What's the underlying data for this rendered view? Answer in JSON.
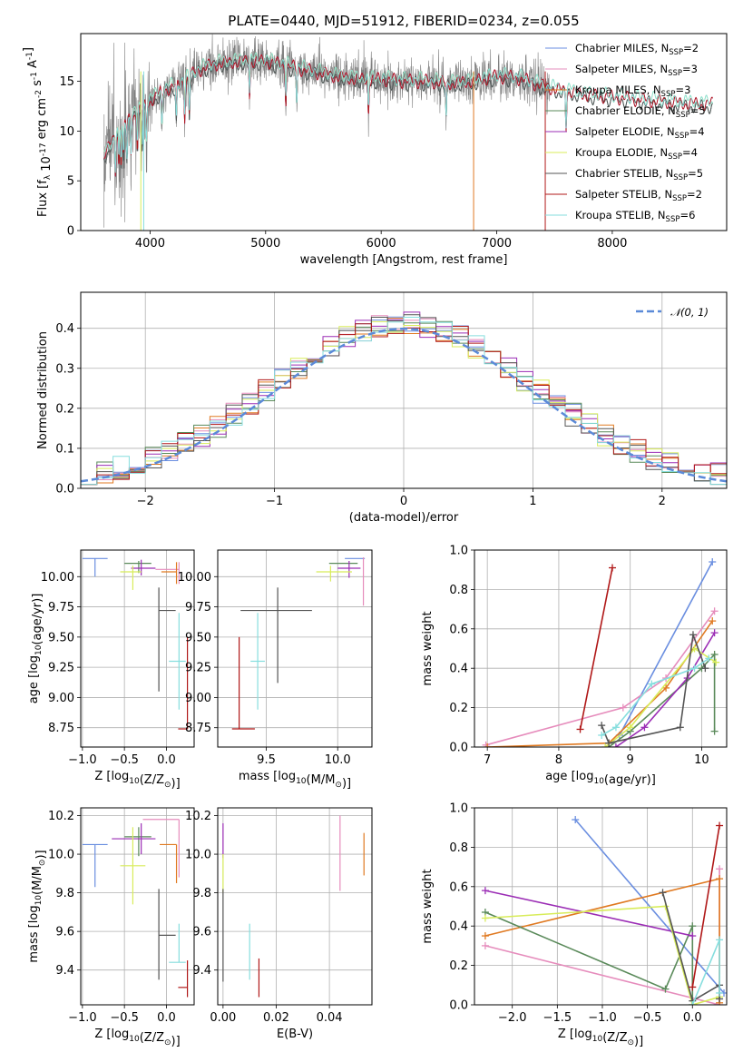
{
  "figure": {
    "title": "PLATE=0440, MJD=51912, FIBERID=0234, z=0.055",
    "colors": {
      "Chabrier MILES": "#6a8ee0",
      "Salpeter MILES": "#e68cbc",
      "Kroupa MILES": "#e07a22",
      "Chabrier ELODIE": "#5a8a5a",
      "Salpeter ELODIE": "#9b2db5",
      "Kroupa ELODIE": "#d8ec5a",
      "Chabrier STELIB": "#555555",
      "Salpeter STELIB": "#b01818",
      "Kroupa STELIB": "#86dede"
    },
    "data_color": "#7f7f7f",
    "gaussian_color": "#5b8ad8"
  },
  "chart_data": [
    {
      "id": "spectrum",
      "type": "line",
      "xlabel": "wavelength [Angstrom, rest frame]",
      "ylabel": "Flux [f_λ 10^-17 erg cm^-2 s^-1 A^-1]",
      "xlim": [
        3400,
        8990
      ],
      "ylim": [
        0,
        19.8
      ],
      "xticks": [
        "4000",
        "5000",
        "6000",
        "7000",
        "8000"
      ],
      "yticks": [
        "0",
        "5",
        "10",
        "15"
      ],
      "legend_position": "upper right",
      "legend": [
        {
          "label": "Chabrier MILES, N",
          "sub": "SSP",
          "n": "=2"
        },
        {
          "label": "Salpeter MILES, N",
          "sub": "SSP",
          "n": "=3"
        },
        {
          "label": "Kroupa MILES, N",
          "sub": "SSP",
          "n": "=3"
        },
        {
          "label": "Chabrier ELODIE, N",
          "sub": "SSP",
          "n": "=5"
        },
        {
          "label": "Salpeter ELODIE, N",
          "sub": "SSP",
          "n": "=4"
        },
        {
          "label": "Kroupa ELODIE, N",
          "sub": "SSP",
          "n": "=4"
        },
        {
          "label": "Chabrier STELIB, N",
          "sub": "SSP",
          "n": "=5"
        },
        {
          "label": "Salpeter STELIB, N",
          "sub": "SSP",
          "n": "=2"
        },
        {
          "label": "Kroupa STELIB, N",
          "sub": "SSP",
          "n": "=6"
        }
      ],
      "continuum": {
        "x": [
          3600,
          3700,
          3800,
          3900,
          4000,
          4100,
          4200,
          4300,
          4400,
          4500,
          4600,
          4800,
          5000,
          5200,
          5400,
          5600,
          5800,
          6000,
          6200,
          6400,
          6600,
          6800,
          7000,
          7200,
          7400,
          7600,
          7800,
          8000,
          8200,
          8400,
          8600,
          8800
        ],
        "y": [
          7.5,
          9.5,
          11.0,
          12.0,
          13.0,
          14.0,
          14.5,
          15.0,
          16.0,
          16.5,
          16.8,
          17.0,
          17.0,
          16.5,
          16.0,
          15.5,
          15.2,
          15.2,
          15.0,
          15.0,
          14.8,
          15.0,
          15.5,
          15.3,
          14.5,
          14.0,
          13.6,
          13.4,
          13.2,
          13.0,
          12.8,
          12.7
        ]
      },
      "data_wavelength_range": [
        3600,
        7460
      ],
      "model_wavelength_range": [
        3600,
        8870
      ],
      "masked_dips": [
        3920,
        3945,
        6800,
        7420
      ]
    },
    {
      "id": "residuals",
      "type": "histogram",
      "xlabel": "(data-model)/error",
      "ylabel": "Normed distribution",
      "xlim": [
        -2.5,
        2.5
      ],
      "ylim": [
        0,
        0.49
      ],
      "xticks": [
        "-2",
        "-1",
        "0",
        "1",
        "2"
      ],
      "yticks": [
        "0.0",
        "0.1",
        "0.2",
        "0.3",
        "0.4"
      ],
      "legend_label": "𝒩(0, 1)",
      "bin_width": 0.125,
      "reference": {
        "name": "N(0,1)",
        "mu": 0,
        "sigma": 1
      }
    },
    {
      "id": "age_vs_Z",
      "type": "errorbar",
      "xlabel": "Z [log10(Z/Z⊙)]",
      "ylabel": "age  [log10(age/yr)]",
      "xlim": [
        -1.02,
        0.33
      ],
      "ylim": [
        8.59,
        10.22
      ],
      "xticks": [
        "-1.0",
        "-0.5",
        "0.0"
      ],
      "yticks": [
        "8.75",
        "9.00",
        "9.25",
        "9.50",
        "9.75",
        "10.00"
      ],
      "points": [
        {
          "model": "Chabrier MILES",
          "x": -0.85,
          "y": 10.15,
          "xerr": [
            0.15,
            0.15
          ],
          "yerr": [
            0.15,
            0.0
          ]
        },
        {
          "model": "Salpeter MILES",
          "x": 0.15,
          "y": 10.06,
          "xerr": [
            0.28,
            0.0
          ],
          "yerr": [
            0.12,
            0.06
          ]
        },
        {
          "model": "Kroupa MILES",
          "x": 0.12,
          "y": 10.04,
          "xerr": [
            0.18,
            0.0
          ],
          "yerr": [
            0.1,
            0.08
          ]
        },
        {
          "model": "Chabrier ELODIE",
          "x": -0.33,
          "y": 10.11,
          "xerr": [
            0.17,
            0.15
          ],
          "yerr": [
            0.08,
            0.02
          ]
        },
        {
          "model": "Salpeter ELODIE",
          "x": -0.3,
          "y": 10.07,
          "xerr": [
            0.12,
            0.17
          ],
          "yerr": [
            0.06,
            0.07
          ]
        },
        {
          "model": "Kroupa ELODIE",
          "x": -0.4,
          "y": 10.04,
          "xerr": [
            0.15,
            0.1
          ],
          "yerr": [
            0.15,
            0.05
          ]
        },
        {
          "model": "Chabrier STELIB",
          "x": -0.09,
          "y": 9.72,
          "xerr": [
            0.0,
            0.2
          ],
          "yerr": [
            0.67,
            0.19
          ]
        },
        {
          "model": "Salpeter STELIB",
          "x": 0.25,
          "y": 8.74,
          "xerr": [
            0.11,
            0.0
          ],
          "yerr": [
            0.0,
            0.76
          ]
        },
        {
          "model": "Kroupa STELIB",
          "x": 0.15,
          "y": 9.3,
          "xerr": [
            0.12,
            0.08
          ],
          "yerr": [
            0.4,
            0.4
          ]
        }
      ]
    },
    {
      "id": "age_vs_mass",
      "type": "errorbar",
      "xlabel": "mass [log10(M/M⊙)]",
      "ylabel": "",
      "xlim": [
        9.16,
        10.24
      ],
      "ylim": [
        8.59,
        10.22
      ],
      "xticks": [
        "9.5",
        "10.0"
      ],
      "yticks": [
        "8.75",
        "9.00",
        "9.25",
        "9.50",
        "9.75",
        "10.00"
      ],
      "points": [
        {
          "model": "Chabrier MILES",
          "x": 10.05,
          "y": 10.15,
          "xerr": [
            0.0,
            0.14
          ],
          "yerr": [
            0.0,
            0.0
          ]
        },
        {
          "model": "Salpeter MILES",
          "x": 10.18,
          "y": 10.06,
          "xerr": [
            0.0,
            0.0
          ],
          "yerr": [
            0.3,
            0.1
          ]
        },
        {
          "model": "Kroupa MILES",
          "x": 10.05,
          "y": 10.04,
          "xerr": [
            0.0,
            0.0
          ],
          "yerr": [
            0.0,
            0.0
          ]
        },
        {
          "model": "Chabrier ELODIE",
          "x": 10.09,
          "y": 10.11,
          "xerr": [
            0.15,
            0.05
          ],
          "yerr": [
            0.0,
            0.0
          ]
        },
        {
          "model": "Salpeter ELODIE",
          "x": 10.08,
          "y": 10.07,
          "xerr": [
            0.08,
            0.08
          ],
          "yerr": [
            0.08,
            0.06
          ]
        },
        {
          "model": "Kroupa ELODIE",
          "x": 9.95,
          "y": 10.04,
          "xerr": [
            0.1,
            0.15
          ],
          "yerr": [
            0.08,
            0.05
          ]
        },
        {
          "model": "Chabrier STELIB",
          "x": 9.58,
          "y": 9.72,
          "xerr": [
            0.26,
            0.24
          ],
          "yerr": [
            0.6,
            0.19
          ]
        },
        {
          "model": "Salpeter STELIB",
          "x": 9.31,
          "y": 8.74,
          "xerr": [
            0.05,
            0.11
          ],
          "yerr": [
            0.0,
            0.76
          ]
        },
        {
          "model": "Kroupa STELIB",
          "x": 9.44,
          "y": 9.3,
          "xerr": [
            0.05,
            0.05
          ],
          "yerr": [
            0.4,
            0.4
          ]
        }
      ]
    },
    {
      "id": "weight_vs_age",
      "type": "line",
      "xlabel": "age  [log10(age/yr)]",
      "ylabel": "mass weight",
      "xlim": [
        6.82,
        10.35
      ],
      "ylim": [
        0,
        1.0
      ],
      "xticks": [
        "7",
        "8",
        "9",
        "10"
      ],
      "yticks": [
        "0.0",
        "0.2",
        "0.4",
        "0.6",
        "0.8",
        "1.0"
      ],
      "series": [
        {
          "model": "Chabrier MILES",
          "x": [
            8.85,
            10.15
          ],
          "y": [
            0.06,
            0.94
          ]
        },
        {
          "model": "Salpeter MILES",
          "x": [
            6.98,
            8.9,
            9.5,
            10.18
          ],
          "y": [
            0.01,
            0.2,
            0.35,
            0.69
          ]
        },
        {
          "model": "Kroupa MILES",
          "x": [
            7.0,
            8.7,
            9.5,
            10.15
          ],
          "y": [
            0.0,
            0.02,
            0.3,
            0.64
          ]
        },
        {
          "model": "Chabrier ELODIE",
          "x": [
            8.7,
            9.0,
            10.0,
            10.18,
            10.18
          ],
          "y": [
            0.0,
            0.08,
            0.4,
            0.47,
            0.08
          ]
        },
        {
          "model": "Salpeter ELODIE",
          "x": [
            8.8,
            9.2,
            9.8,
            10.18
          ],
          "y": [
            0.0,
            0.1,
            0.35,
            0.58
          ]
        },
        {
          "model": "Kroupa ELODIE",
          "x": [
            8.65,
            9.0,
            9.9,
            10.2
          ],
          "y": [
            0.0,
            0.1,
            0.5,
            0.43
          ]
        },
        {
          "model": "Chabrier STELIB",
          "x": [
            8.6,
            8.7,
            9.7,
            9.88,
            10.05
          ],
          "y": [
            0.11,
            0.02,
            0.1,
            0.57,
            0.4
          ]
        },
        {
          "model": "Salpeter STELIB",
          "x": [
            8.3,
            8.75
          ],
          "y": [
            0.09,
            0.91
          ]
        },
        {
          "model": "Kroupa STELIB",
          "x": [
            8.6,
            8.8,
            9.3,
            9.9,
            10.1
          ],
          "y": [
            0.06,
            0.1,
            0.32,
            0.4,
            0.45
          ]
        }
      ]
    },
    {
      "id": "mass_vs_Z",
      "type": "errorbar",
      "xlabel": "Z [log10(Z/Z⊙)]",
      "ylabel": "mass [log10(M/M⊙)]",
      "xlim": [
        -1.02,
        0.33
      ],
      "ylim": [
        9.22,
        10.24
      ],
      "xticks": [
        "-1.0",
        "-0.5",
        "0.0"
      ],
      "yticks": [
        "9.4",
        "9.6",
        "9.8",
        "10.0",
        "10.2"
      ],
      "points": [
        {
          "model": "Chabrier MILES",
          "x": -0.85,
          "y": 10.05,
          "xerr": [
            0.15,
            0.15
          ],
          "yerr": [
            0.22,
            0.0
          ]
        },
        {
          "model": "Salpeter MILES",
          "x": 0.15,
          "y": 10.18,
          "xerr": [
            0.43,
            0.0
          ],
          "yerr": [
            0.3,
            0.0
          ]
        },
        {
          "model": "Kroupa MILES",
          "x": 0.12,
          "y": 10.05,
          "xerr": [
            0.2,
            0.0
          ],
          "yerr": [
            0.2,
            0.0
          ]
        },
        {
          "model": "Chabrier ELODIE",
          "x": -0.33,
          "y": 10.09,
          "xerr": [
            0.17,
            0.15
          ],
          "yerr": [
            0.1,
            0.05
          ]
        },
        {
          "model": "Salpeter ELODIE",
          "x": -0.3,
          "y": 10.08,
          "xerr": [
            0.35,
            0.17
          ],
          "yerr": [
            0.08,
            0.08
          ]
        },
        {
          "model": "Kroupa ELODIE",
          "x": -0.4,
          "y": 9.94,
          "xerr": [
            0.15,
            0.15
          ],
          "yerr": [
            0.2,
            0.2
          ]
        },
        {
          "model": "Chabrier STELIB",
          "x": -0.09,
          "y": 9.58,
          "xerr": [
            0.0,
            0.2
          ],
          "yerr": [
            0.23,
            0.24
          ]
        },
        {
          "model": "Salpeter STELIB",
          "x": 0.25,
          "y": 9.31,
          "xerr": [
            0.11,
            0.0
          ],
          "yerr": [
            0.05,
            0.14
          ]
        },
        {
          "model": "Kroupa STELIB",
          "x": 0.15,
          "y": 9.44,
          "xerr": [
            0.12,
            0.08
          ],
          "yerr": [
            0.0,
            0.2
          ]
        }
      ]
    },
    {
      "id": "mass_vs_ebv",
      "type": "errorbar",
      "xlabel": "E(B-V)",
      "ylabel": "",
      "xlim": [
        -0.002,
        0.056
      ],
      "ylim": [
        9.22,
        10.24
      ],
      "xticks": [
        "0.00",
        "0.02",
        "0.04"
      ],
      "yticks": [
        "9.4",
        "9.6",
        "9.8",
        "10.0",
        "10.2"
      ],
      "points": [
        {
          "model": "Salpeter ELODIE",
          "x": 0.0,
          "y": 10.08,
          "xerr": [
            0,
            0
          ],
          "yerr": [
            0.1,
            0.08
          ]
        },
        {
          "model": "Kroupa ELODIE",
          "x": 0.0,
          "y": 9.94,
          "xerr": [
            0,
            0
          ],
          "yerr": [
            0.14,
            0.06
          ]
        },
        {
          "model": "Chabrier STELIB",
          "x": 0.0,
          "y": 9.58,
          "xerr": [
            0,
            0
          ],
          "yerr": [
            0.24,
            0.24
          ]
        },
        {
          "model": "Kroupa STELIB",
          "x": 0.01,
          "y": 9.49,
          "xerr": [
            0,
            0
          ],
          "yerr": [
            0.14,
            0.15
          ]
        },
        {
          "model": "Salpeter STELIB",
          "x": 0.0135,
          "y": 9.33,
          "xerr": [
            0,
            0
          ],
          "yerr": [
            0.07,
            0.13
          ]
        },
        {
          "model": "Salpeter MILES",
          "x": 0.044,
          "y": 10.0,
          "xerr": [
            0,
            0
          ],
          "yerr": [
            0.19,
            0.2
          ]
        },
        {
          "model": "Kroupa MILES",
          "x": 0.053,
          "y": 10.0,
          "xerr": [
            0,
            0
          ],
          "yerr": [
            0.11,
            0.11
          ]
        }
      ]
    },
    {
      "id": "weight_vs_Z",
      "type": "line",
      "xlabel": "Z [log10(Z/Z⊙)]",
      "ylabel": "mass weight",
      "xlim": [
        -2.42,
        0.38
      ],
      "ylim": [
        0,
        1.0
      ],
      "xticks": [
        "-2.0",
        "-1.5",
        "-1.0",
        "-0.5",
        "0.0"
      ],
      "yticks": [
        "0.0",
        "0.2",
        "0.4",
        "0.6",
        "0.8",
        "1.0"
      ],
      "series": [
        {
          "model": "Chabrier MILES",
          "x": [
            -1.3,
            0.35
          ],
          "y": [
            0.94,
            0.06
          ]
        },
        {
          "model": "Salpeter MILES",
          "x": [
            -2.3,
            0.3,
            0.3
          ],
          "y": [
            0.3,
            0.0,
            0.69
          ]
        },
        {
          "model": "Kroupa MILES",
          "x": [
            -2.3,
            0.3,
            0.3
          ],
          "y": [
            0.35,
            0.64,
            0.01
          ]
        },
        {
          "model": "Chabrier ELODIE",
          "x": [
            -2.3,
            -0.3,
            0.0,
            0.0
          ],
          "y": [
            0.47,
            0.08,
            0.4,
            0.0
          ]
        },
        {
          "model": "Salpeter ELODIE",
          "x": [
            -2.3,
            0.0
          ],
          "y": [
            0.58,
            0.35
          ]
        },
        {
          "model": "Kroupa ELODIE",
          "x": [
            -2.3,
            -0.3,
            0.0,
            0.3
          ],
          "y": [
            0.44,
            0.5,
            0.0,
            0.04
          ]
        },
        {
          "model": "Chabrier STELIB",
          "x": [
            -0.33,
            0.0,
            0.3,
            0.3
          ],
          "y": [
            0.57,
            0.02,
            0.1,
            0.03
          ]
        },
        {
          "model": "Salpeter STELIB",
          "x": [
            0.0,
            0.3
          ],
          "y": [
            0.09,
            0.91
          ]
        },
        {
          "model": "Kroupa STELIB",
          "x": [
            0.0,
            0.3,
            0.3
          ],
          "y": [
            0.0,
            0.33,
            0.06
          ]
        }
      ]
    }
  ]
}
